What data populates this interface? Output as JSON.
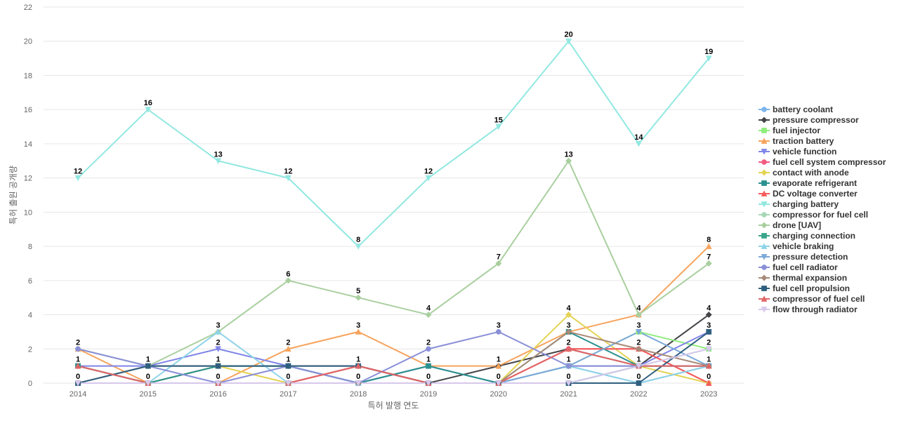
{
  "chart_data": {
    "type": "line",
    "title": "",
    "xlabel": "특허 발행 연도",
    "ylabel": "특허 출원 공개량",
    "x": [
      "2014",
      "2015",
      "2016",
      "2017",
      "2018",
      "2019",
      "2020",
      "2021",
      "2022",
      "2023"
    ],
    "ylim": [
      0,
      22
    ],
    "yticks": [
      0,
      2,
      4,
      6,
      8,
      10,
      12,
      14,
      16,
      18,
      20,
      22
    ],
    "grid": true,
    "legend_position": "right",
    "series": [
      {
        "name": "battery coolant",
        "color": "#7cb5ec",
        "marker": "circle",
        "values": [
          1,
          0,
          1,
          1,
          0,
          1,
          0,
          1,
          0,
          1
        ]
      },
      {
        "name": "pressure compressor",
        "color": "#434348",
        "marker": "diamond",
        "values": [
          0,
          1,
          1,
          1,
          1,
          0,
          1,
          2,
          1,
          4
        ]
      },
      {
        "name": "fuel injector",
        "color": "#90ed7d",
        "marker": "square",
        "values": [
          1,
          0,
          1,
          1,
          0,
          1,
          0,
          1,
          3,
          2
        ]
      },
      {
        "name": "traction battery",
        "color": "#f7a35c",
        "marker": "triangle",
        "values": [
          2,
          0,
          0,
          2,
          3,
          1,
          1,
          3,
          4,
          8
        ]
      },
      {
        "name": "vehicle function",
        "color": "#8085e9",
        "marker": "triangle-down",
        "values": [
          1,
          1,
          2,
          1,
          0,
          1,
          0,
          1,
          1,
          3
        ]
      },
      {
        "name": "fuel cell system compressor",
        "color": "#f15c80",
        "marker": "circle",
        "values": [
          1,
          0,
          0,
          0,
          1,
          0,
          0,
          2,
          2,
          0
        ]
      },
      {
        "name": "contact with anode",
        "color": "#e4d354",
        "marker": "diamond",
        "values": [
          0,
          0,
          1,
          0,
          0,
          0,
          0,
          4,
          1,
          0
        ]
      },
      {
        "name": "evaporate refrigerant",
        "color": "#2b908f",
        "marker": "square",
        "values": [
          1,
          0,
          1,
          1,
          0,
          1,
          0,
          3,
          1,
          1
        ]
      },
      {
        "name": "DC voltage converter",
        "color": "#f45b5b",
        "marker": "triangle",
        "values": [
          0,
          0,
          0,
          0,
          1,
          0,
          0,
          2,
          2,
          0
        ]
      },
      {
        "name": "charging battery",
        "color": "#91e8e1",
        "marker": "triangle-down",
        "values": [
          12,
          16,
          13,
          12,
          8,
          12,
          15,
          20,
          14,
          19
        ]
      },
      {
        "name": "compressor for fuel cell",
        "color": "#a6d8b8",
        "marker": "circle",
        "values": [
          0,
          0,
          0,
          0,
          0,
          0,
          0,
          0,
          1,
          2
        ]
      },
      {
        "name": "drone [UAV]",
        "color": "#a9cf9f",
        "marker": "diamond",
        "values": [
          2,
          1,
          3,
          6,
          5,
          4,
          7,
          13,
          4,
          7
        ]
      },
      {
        "name": "charging connection",
        "color": "#3aa58a",
        "marker": "square",
        "values": [
          0,
          0,
          0,
          0,
          0,
          0,
          0,
          0,
          1,
          1
        ]
      },
      {
        "name": "vehicle braking",
        "color": "#8fd3e8",
        "marker": "triangle",
        "values": [
          0,
          0,
          3,
          0,
          0,
          0,
          0,
          1,
          0,
          1
        ]
      },
      {
        "name": "pressure detection",
        "color": "#7ba8d8",
        "marker": "triangle-down",
        "values": [
          0,
          0,
          0,
          0,
          0,
          0,
          0,
          1,
          3,
          1
        ]
      },
      {
        "name": "fuel cell radiator",
        "color": "#8a8fd8",
        "marker": "circle",
        "values": [
          2,
          1,
          0,
          1,
          0,
          2,
          3,
          1,
          1,
          1
        ]
      },
      {
        "name": "thermal expansion",
        "color": "#a88a78",
        "marker": "diamond",
        "values": [
          0,
          0,
          0,
          0,
          0,
          0,
          0,
          3,
          2,
          1
        ]
      },
      {
        "name": "fuel cell propulsion",
        "color": "#2f5f7f",
        "marker": "square",
        "values": [
          0,
          1,
          1,
          1,
          1,
          0,
          0,
          0,
          0,
          3
        ]
      },
      {
        "name": "compressor of fuel cell",
        "color": "#e06666",
        "marker": "triangle",
        "values": [
          1,
          0,
          0,
          0,
          1,
          0,
          0,
          2,
          1,
          1
        ]
      },
      {
        "name": "flow through radiator",
        "color": "#d8c8ec",
        "marker": "triangle-down",
        "values": [
          0,
          0,
          0,
          0,
          0,
          0,
          0,
          0,
          1,
          2
        ]
      }
    ],
    "data_labels": {
      "2014": [
        12,
        2,
        1,
        0
      ],
      "2015": [
        16,
        1,
        0
      ],
      "2016": [
        13,
        3,
        2,
        1,
        0
      ],
      "2017": [
        12,
        6,
        2,
        1,
        0
      ],
      "2018": [
        8,
        5,
        3,
        1,
        0
      ],
      "2019": [
        12,
        4,
        2,
        1,
        0
      ],
      "2020": [
        15,
        7,
        3,
        1,
        0
      ],
      "2021": [
        20,
        13,
        4,
        3,
        2,
        1,
        0
      ],
      "2022": [
        14,
        4,
        3,
        2,
        1,
        0
      ],
      "2023": [
        19,
        8,
        7,
        4,
        3,
        2,
        1,
        0
      ]
    }
  }
}
